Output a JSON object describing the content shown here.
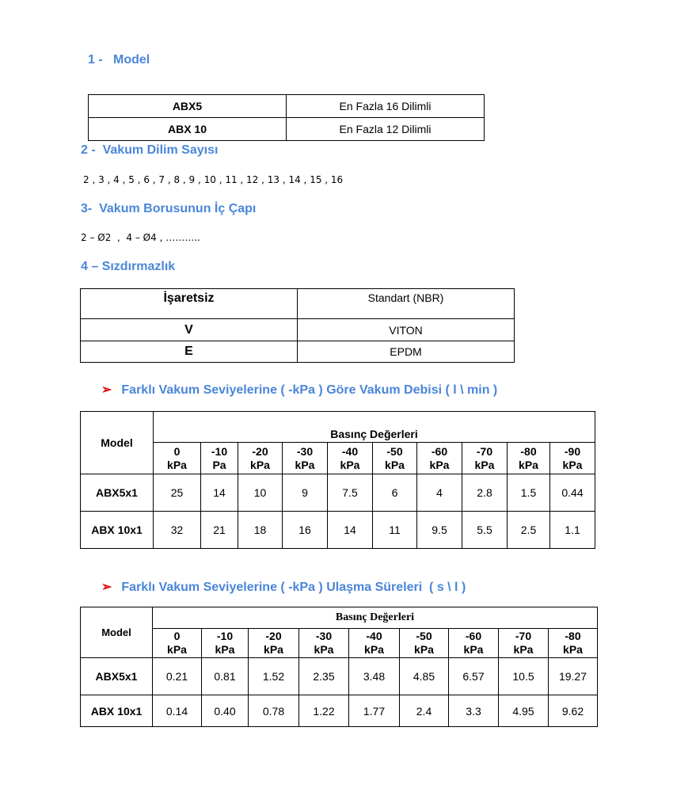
{
  "s1": {
    "title": "1 -   Model",
    "rows": [
      [
        "ABX5",
        "En Fazla 16 Dilimli"
      ],
      [
        "ABX 10",
        "En Fazla 12 Dilimli"
      ]
    ]
  },
  "s2": {
    "title": "2 -  Vakum Dilim Sayısı",
    "text": "2 , 3 , 4 , 5 , 6 , 7 , 8 , 9 , 10 , 11 , 12 , 13 , 14 , 15 , 16"
  },
  "s3": {
    "title": "3-  Vakum Borusunun İç Çapı",
    "text": "2 – Ø2  ,  4 – Ø4 , ……….."
  },
  "s4": {
    "title": "4 – Sızdırmazlık",
    "rows": [
      [
        "İşaretsiz",
        "Standart  (NBR)"
      ],
      [
        "V",
        "VITON"
      ],
      [
        "E",
        "EPDM"
      ]
    ]
  },
  "flow": {
    "title": "Farklı Vakum Seviyelerine ( -kPa ) Göre Vakum Debisi ( l \\ min )",
    "model_header": "Model",
    "group_header": "Basınç Değerleri",
    "columns": [
      [
        "0",
        "kPa"
      ],
      [
        "-10",
        "Pa"
      ],
      [
        "-20",
        "kPa"
      ],
      [
        "-30",
        "kPa"
      ],
      [
        "-40",
        "kPa"
      ],
      [
        "-50",
        "kPa"
      ],
      [
        "-60",
        "kPa"
      ],
      [
        "-70",
        "kPa"
      ],
      [
        "-80",
        "kPa"
      ],
      [
        "-90",
        "kPa"
      ]
    ],
    "rows": [
      {
        "model": "ABX5x1",
        "values": [
          "25",
          "14",
          "10",
          "9",
          "7.5",
          "6",
          "4",
          "2.8",
          "1.5",
          "0.44"
        ]
      },
      {
        "model": "ABX 10x1",
        "values": [
          "32",
          "21",
          "18",
          "16",
          "14",
          "11",
          "9.5",
          "5.5",
          "2.5",
          "1.1"
        ]
      }
    ]
  },
  "time": {
    "title": "Farklı Vakum Seviyelerine ( -kPa ) Ulaşma Süreleri  ( s \\ l )",
    "model_header": "Model",
    "group_header": "Basınç Değerleri",
    "columns": [
      [
        "0",
        "kPa"
      ],
      [
        "-10",
        "kPa"
      ],
      [
        "-20",
        "kPa"
      ],
      [
        "-30",
        "kPa"
      ],
      [
        "-40",
        "kPa"
      ],
      [
        "-50",
        "kPa"
      ],
      [
        "-60",
        "kPa"
      ],
      [
        "-70",
        "kPa"
      ],
      [
        "-80",
        "kPa"
      ]
    ],
    "rows": [
      {
        "model": "ABX5x1",
        "values": [
          "0.21",
          "0.81",
          "1.52",
          "2.35",
          "3.48",
          "4.85",
          "6.57",
          "10.5",
          "19.27"
        ]
      },
      {
        "model": "ABX 10x1",
        "values": [
          "0.14",
          "0.40",
          "0.78",
          "1.22",
          "1.77",
          "2.4",
          "3.3",
          "4.95",
          "9.62"
        ]
      }
    ]
  },
  "colors": {
    "heading": "#4a86d8",
    "arrow": "#e01010"
  }
}
